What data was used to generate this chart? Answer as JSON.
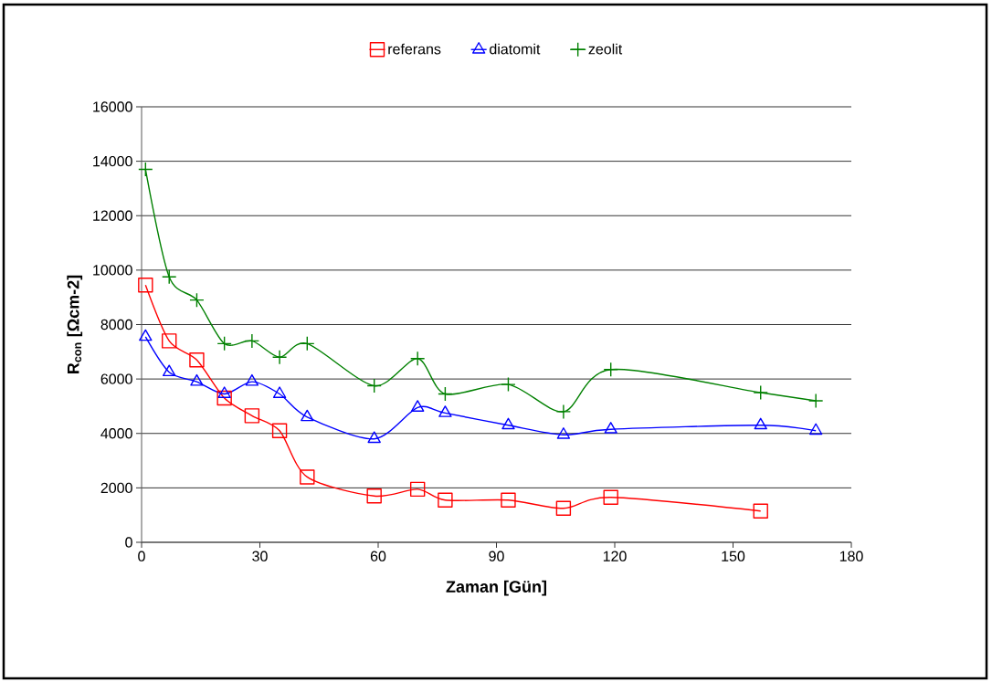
{
  "chart_data": {
    "type": "line",
    "xlabel": "Zaman  [Gün]",
    "ylabel": "R$_{con}$ [Ωcm-2]",
    "x": [
      1,
      7,
      14,
      21,
      28,
      35,
      42,
      59,
      70,
      77,
      93,
      107,
      119,
      157,
      171
    ],
    "series": [
      {
        "name": "referans",
        "color": "#ff0000",
        "marker": "square",
        "values": [
          9450,
          7400,
          6700,
          5300,
          4650,
          4100,
          2400,
          1700,
          1950,
          1550,
          1550,
          1250,
          1650,
          1150,
          null
        ]
      },
      {
        "name": "diatomit",
        "color": "#0000ff",
        "marker": "triangle",
        "values": [
          7550,
          6250,
          5900,
          5450,
          5900,
          5450,
          4600,
          3800,
          4950,
          4750,
          4300,
          3950,
          4150,
          4300,
          4100
        ]
      },
      {
        "name": "zeolit",
        "color": "#008000",
        "marker": "cross",
        "values": [
          13700,
          9750,
          8900,
          7300,
          7400,
          6800,
          7300,
          5750,
          6750,
          5450,
          5800,
          4800,
          6350,
          5500,
          5200
        ]
      }
    ],
    "xlim": [
      0,
      180
    ],
    "xticks": [
      0,
      30,
      60,
      90,
      120,
      150,
      180
    ],
    "ylim": [
      0,
      16000
    ],
    "yticks": [
      0,
      2000,
      4000,
      6000,
      8000,
      10000,
      12000,
      14000,
      16000
    ],
    "grid": "y",
    "legend": "top",
    "line_style": "solid"
  }
}
